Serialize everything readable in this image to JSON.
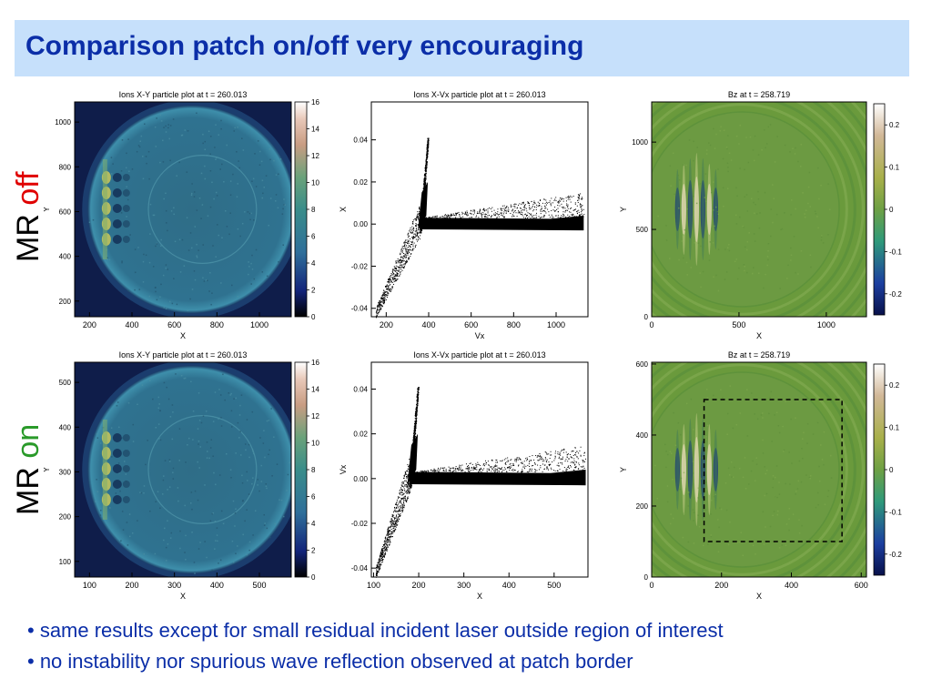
{
  "slide": {
    "title": "Comparison patch on/off very encouraging",
    "rows": [
      {
        "label": "MR",
        "state": "off"
      },
      {
        "label": "MR",
        "state": "on"
      }
    ],
    "bullets": [
      "• same results except for small residual incident laser outside region of interest",
      "• no instability nor spurious wave reflection observed at patch border"
    ]
  },
  "chart_data": [
    {
      "type": "heatmap",
      "title": "Ions X-Y particle plot at t = 260.013",
      "xlabel": "X",
      "ylabel": "Y",
      "xticks": [
        "200",
        "400",
        "600",
        "800",
        "1000"
      ],
      "yticks": [
        "200",
        "400",
        "600",
        "800",
        "1000"
      ],
      "xlim": [
        130,
        1150
      ],
      "ylim": [
        130,
        1090
      ],
      "colorbar": {
        "ticks": [
          "0",
          "2",
          "4",
          "6",
          "8",
          "10",
          "12",
          "14",
          "16"
        ],
        "range": [
          0,
          16
        ]
      },
      "colors": {
        "background": "#0f1d4a",
        "disk": "#2e6e86",
        "rim": "#3f8fa8"
      }
    },
    {
      "type": "scatter",
      "title": "Ions X-Vx particle plot at t = 260.013",
      "xlabel": "Vx",
      "ylabel": "X",
      "xticks": [
        "200",
        "400",
        "600",
        "800",
        "1000"
      ],
      "yticks": [
        "-0.04",
        "-0.02",
        "0.00",
        "0.02",
        "0.04"
      ],
      "xlim": [
        130,
        1150
      ],
      "ylim": [
        -0.044,
        0.058
      ]
    },
    {
      "type": "heatmap",
      "title": "Bz at t = 258.719",
      "xlabel": "X",
      "ylabel": "Y",
      "xticks": [
        "0",
        "500",
        "1000"
      ],
      "yticks": [
        "0",
        "500",
        "1000"
      ],
      "xlim": [
        0,
        1230
      ],
      "ylim": [
        0,
        1230
      ],
      "colorbar": {
        "ticks": [
          "-0.2",
          "-0.1",
          "0",
          "0.1",
          "0.2"
        ],
        "range": [
          -0.25,
          0.25
        ]
      },
      "colors": {
        "background": "#6a9a3c"
      }
    },
    {
      "type": "heatmap",
      "title": "Ions X-Y particle plot at t = 260.013",
      "xlabel": "X",
      "ylabel": "Y",
      "xticks": [
        "100",
        "200",
        "300",
        "400",
        "500"
      ],
      "yticks": [
        "100",
        "200",
        "300",
        "400",
        "500"
      ],
      "xlim": [
        65,
        575
      ],
      "ylim": [
        65,
        545
      ],
      "colorbar": {
        "ticks": [
          "0",
          "2",
          "4",
          "6",
          "8",
          "10",
          "12",
          "14",
          "16"
        ],
        "range": [
          0,
          16
        ]
      },
      "colors": {
        "background": "#0f1d4a",
        "disk": "#2e6e86",
        "rim": "#3f8fa8"
      }
    },
    {
      "type": "scatter",
      "title": "Ions X-Vx particle plot at t = 260.013",
      "xlabel": "X",
      "ylabel": "Vx",
      "xticks": [
        "100",
        "200",
        "300",
        "400",
        "500"
      ],
      "yticks": [
        "-0.04",
        "-0.02",
        "0.00",
        "0.02",
        "0.04"
      ],
      "xlim": [
        95,
        575
      ],
      "ylim": [
        -0.044,
        0.052
      ]
    },
    {
      "type": "heatmap",
      "title": "Bz at t = 258.719",
      "xlabel": "X",
      "ylabel": "Y",
      "xticks": [
        "0",
        "200",
        "400",
        "600"
      ],
      "yticks": [
        "0",
        "200",
        "400",
        "600"
      ],
      "xlim": [
        0,
        615
      ],
      "ylim": [
        0,
        605
      ],
      "colorbar": {
        "ticks": [
          "-0.2",
          "-0.1",
          "0",
          "0.1",
          "0.2"
        ],
        "range": [
          -0.25,
          0.25
        ]
      },
      "patch_box": {
        "x": [
          150,
          545
        ],
        "y": [
          100,
          500
        ]
      },
      "colors": {
        "background": "#6a9a3c"
      }
    }
  ]
}
